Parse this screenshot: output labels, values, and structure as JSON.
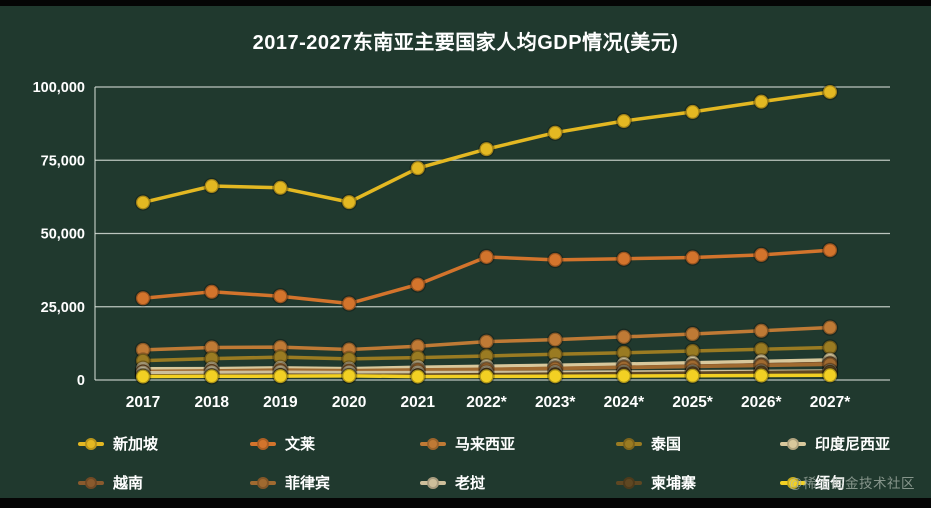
{
  "watermark": "@稀土掘金技术社区",
  "chart_data": {
    "type": "line",
    "title": "2017-2027东南亚主要国家人均GDP情况(美元)",
    "x": [
      "2017",
      "2018",
      "2019",
      "2020",
      "2021",
      "2022*",
      "2023*",
      "2024*",
      "2025*",
      "2026*",
      "2027*"
    ],
    "xlabel": "",
    "ylabel": "",
    "ylim": [
      0,
      100000
    ],
    "yticks": [
      0,
      25000,
      50000,
      75000,
      100000
    ],
    "ytick_labels": [
      "0",
      "25,000",
      "50,000",
      "75,000",
      "100,000"
    ],
    "grid": true,
    "legend_position": "bottom",
    "background": "#20392e",
    "series": [
      {
        "name": "新加坡",
        "color": "#e3b822",
        "values": [
          60600,
          66200,
          65600,
          60700,
          72300,
          78800,
          84400,
          88400,
          91500,
          95000,
          98300
        ]
      },
      {
        "name": "文莱",
        "color": "#d3742c",
        "values": [
          27900,
          30100,
          28600,
          26100,
          32600,
          42000,
          41000,
          41400,
          41800,
          42700,
          44300
        ]
      },
      {
        "name": "马来西亚",
        "color": "#bf7a35",
        "values": [
          10300,
          11100,
          11200,
          10400,
          11500,
          13100,
          13800,
          14700,
          15700,
          16800,
          17900
        ]
      },
      {
        "name": "泰国",
        "color": "#9a7b22",
        "values": [
          6600,
          7300,
          7800,
          7200,
          7650,
          8200,
          8800,
          9300,
          9900,
          10500,
          11100
        ]
      },
      {
        "name": "印度尼西亚",
        "color": "#d8c89c",
        "values": [
          3840,
          3890,
          4140,
          3870,
          4350,
          4700,
          5050,
          5450,
          5900,
          6350,
          6850
        ]
      },
      {
        "name": "越南",
        "color": "#8a5a2d",
        "values": [
          2370,
          2570,
          2720,
          2790,
          3180,
          3590,
          3950,
          4350,
          4750,
          5200,
          5650
        ]
      },
      {
        "name": "菲律宾",
        "color": "#a06a30",
        "values": [
          2960,
          3100,
          3410,
          3220,
          3460,
          3650,
          3950,
          4250,
          4600,
          4950,
          5350
        ]
      },
      {
        "name": "老挝",
        "color": "#cdbf9b",
        "values": [
          2460,
          2570,
          2630,
          2520,
          2500,
          2540,
          2630,
          2730,
          2840,
          2960,
          3090
        ]
      },
      {
        "name": "柬埔寨",
        "color": "#5f4722",
        "values": [
          1390,
          1530,
          1680,
          1580,
          1680,
          1830,
          1990,
          2160,
          2350,
          2550,
          2770
        ]
      },
      {
        "name": "缅甸",
        "color": "#f2d023",
        "values": [
          1190,
          1280,
          1310,
          1420,
          1170,
          1230,
          1300,
          1370,
          1440,
          1520,
          1610
        ]
      }
    ]
  }
}
